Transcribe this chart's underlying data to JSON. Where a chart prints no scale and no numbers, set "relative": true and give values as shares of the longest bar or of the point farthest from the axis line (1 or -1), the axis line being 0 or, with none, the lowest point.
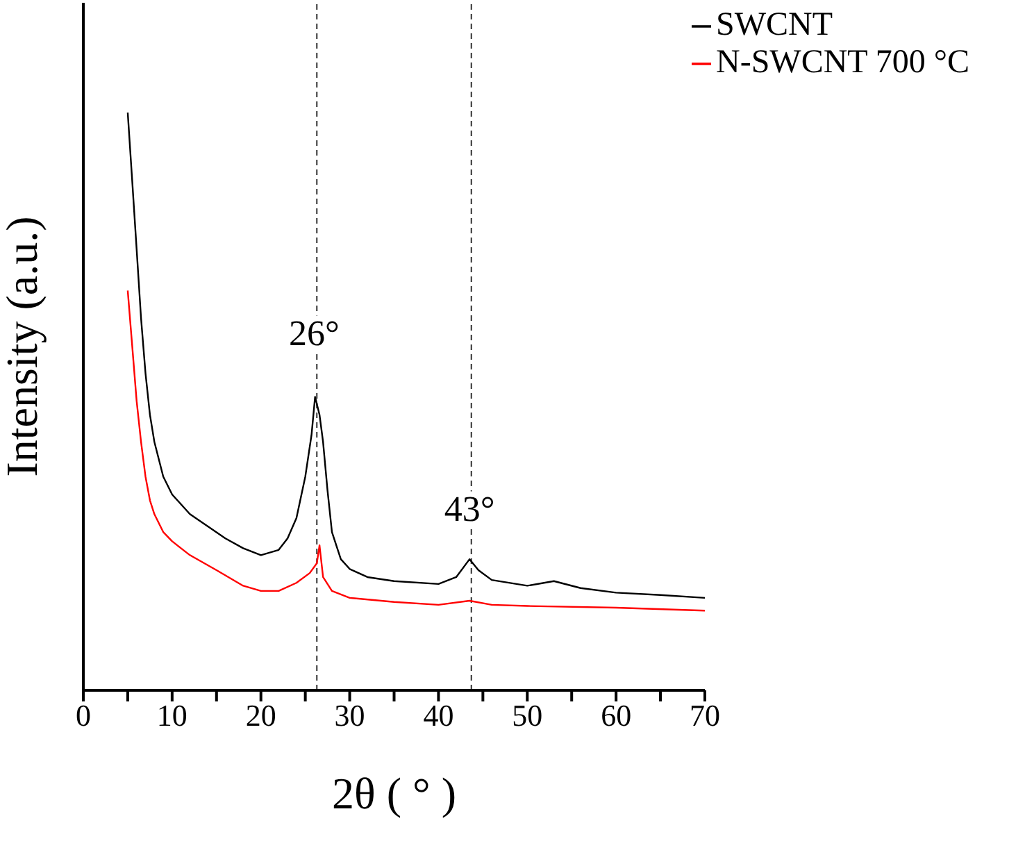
{
  "chart_data": {
    "type": "line",
    "xlabel": "2θ ( ° )",
    "ylabel": "Intensity (a.u.)",
    "relative": true,
    "tick_labels": "x",
    "legend": "top right",
    "marker": "none",
    "line_style": "solid",
    "grid": false,
    "xlim": [
      0,
      70
    ],
    "xticks": [
      0,
      {
        "value": 5,
        "label": null
      },
      10,
      {
        "value": 15,
        "label": null
      },
      20,
      {
        "value": 25,
        "label": null
      },
      30,
      {
        "value": 35,
        "label": null
      },
      40,
      {
        "value": 45,
        "label": null
      },
      50,
      {
        "value": 55,
        "label": null
      },
      60,
      {
        "value": 65,
        "label": null
      },
      70
    ],
    "ref_lines": [
      {
        "axis": "x",
        "value": 26.3,
        "line_style": "dashed"
      },
      {
        "axis": "x",
        "value": 43.7,
        "line_style": "dashed"
      }
    ],
    "annotations": [
      {
        "text": "26°",
        "x": 26,
        "y": 0.62
      },
      {
        "text": "43°",
        "x": 43.5,
        "y": 0.315
      }
    ],
    "series": [
      {
        "name": "SWCNT",
        "color": "#000000",
        "x": [
          5,
          5.5,
          6,
          6.5,
          7,
          7.5,
          8,
          9,
          10,
          12,
          14,
          16,
          18,
          20,
          22,
          23,
          24,
          25,
          25.7,
          26.1,
          26.6,
          27,
          27.5,
          28,
          29,
          30,
          32,
          35,
          40,
          42,
          43.5,
          44.5,
          46,
          50,
          53,
          56,
          60,
          65,
          70
        ],
        "values": [
          1.0,
          0.883,
          0.764,
          0.644,
          0.549,
          0.477,
          0.43,
          0.37,
          0.339,
          0.305,
          0.284,
          0.263,
          0.246,
          0.234,
          0.243,
          0.263,
          0.298,
          0.37,
          0.442,
          0.508,
          0.477,
          0.43,
          0.346,
          0.274,
          0.227,
          0.21,
          0.196,
          0.189,
          0.184,
          0.196,
          0.227,
          0.208,
          0.191,
          0.181,
          0.189,
          0.177,
          0.169,
          0.165,
          0.16
        ]
      },
      {
        "name": "N-SWCNT 700 °C",
        "color": "#ff0000",
        "x": [
          5,
          5.5,
          6,
          6.5,
          7,
          7.5,
          8,
          9,
          10,
          12,
          15,
          18,
          20,
          22,
          24,
          25.5,
          26.3,
          26.6,
          27,
          28,
          30,
          35,
          40,
          43.5,
          46,
          50,
          60,
          70
        ],
        "values": [
          0.692,
          0.597,
          0.501,
          0.43,
          0.37,
          0.329,
          0.305,
          0.274,
          0.258,
          0.234,
          0.208,
          0.181,
          0.172,
          0.172,
          0.186,
          0.203,
          0.22,
          0.251,
          0.196,
          0.172,
          0.16,
          0.153,
          0.148,
          0.155,
          0.148,
          0.146,
          0.143,
          0.138
        ]
      }
    ]
  }
}
